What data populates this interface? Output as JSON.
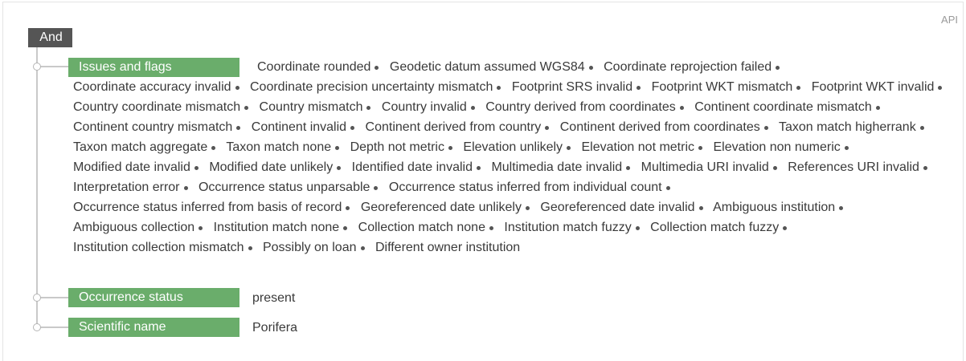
{
  "header": {
    "api_label": "API"
  },
  "root": {
    "operator": "And"
  },
  "filters": [
    {
      "label": "Issues and flags",
      "values": [
        "Coordinate rounded",
        "Geodetic datum assumed WGS84",
        "Coordinate reprojection failed",
        "Coordinate accuracy invalid",
        "Coordinate precision uncertainty mismatch",
        "Footprint SRS invalid",
        "Footprint WKT mismatch",
        "Footprint WKT invalid",
        "Country coordinate mismatch",
        "Country mismatch",
        "Country invalid",
        "Country derived from coordinates",
        "Continent coordinate mismatch",
        "Continent country mismatch",
        "Continent invalid",
        "Continent derived from country",
        "Continent derived from coordinates",
        "Taxon match higherrank",
        "Taxon match aggregate",
        "Taxon match none",
        "Depth not metric",
        "Elevation unlikely",
        "Elevation not metric",
        "Elevation non numeric",
        "Modified date invalid",
        "Modified date unlikely",
        "Identified date invalid",
        "Multimedia date invalid",
        "Multimedia URI invalid",
        "References URI invalid",
        "Interpretation error",
        "Occurrence status unparsable",
        "Occurrence status inferred from individual count",
        "Occurrence status inferred from basis of record",
        "Georeferenced date unlikely",
        "Georeferenced date invalid",
        "Ambiguous institution",
        "Ambiguous collection",
        "Institution match none",
        "Collection match none",
        "Institution match fuzzy",
        "Collection match fuzzy",
        "Institution collection mismatch",
        "Possibly on loan",
        "Different owner institution"
      ]
    },
    {
      "label": "Occurrence status",
      "values": [
        "present"
      ]
    },
    {
      "label": "Scientific name",
      "values": [
        "Porifera"
      ]
    }
  ]
}
